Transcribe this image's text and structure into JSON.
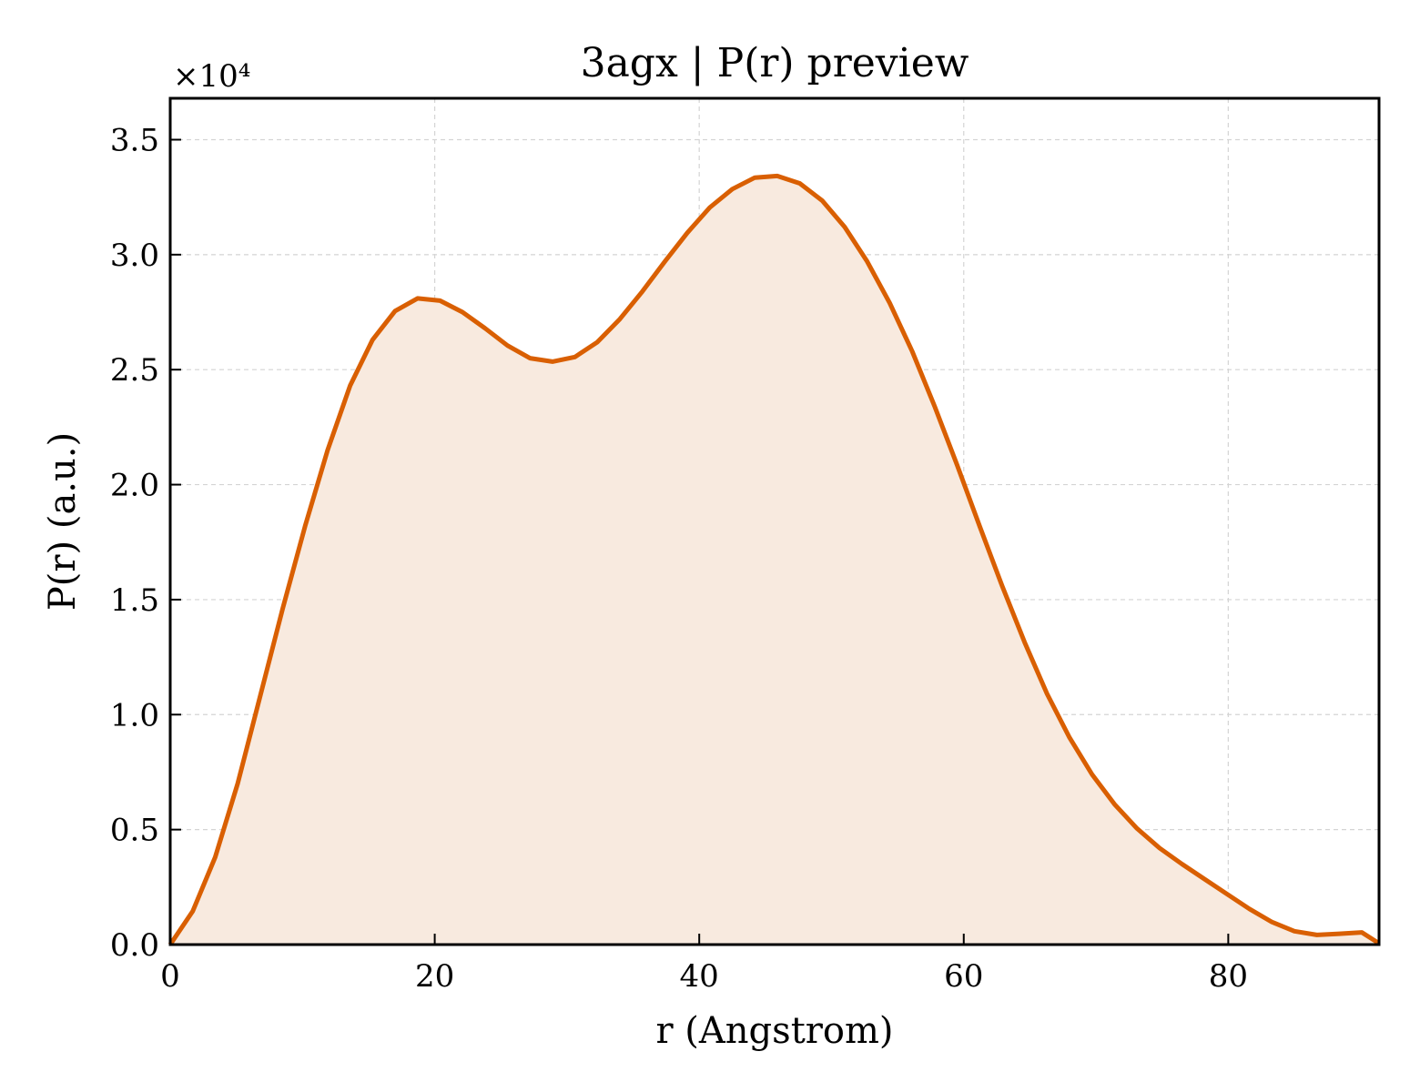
{
  "chart_data": {
    "type": "area",
    "title": "3agx | P(r) preview",
    "xlabel": "r (Angstrom)",
    "ylabel": "P(r) (a.u.)",
    "y_offset_label": "×10⁴",
    "xlim": [
      0,
      91.4
    ],
    "ylim": [
      0,
      36800
    ],
    "x_ticks": [
      0,
      20,
      40,
      60,
      80
    ],
    "x_tick_labels": [
      "0",
      "20",
      "40",
      "60",
      "80"
    ],
    "y_ticks": [
      0,
      5000,
      10000,
      15000,
      20000,
      25000,
      30000,
      35000
    ],
    "y_tick_labels": [
      "0.0",
      "0.5",
      "1.0",
      "1.5",
      "2.0",
      "2.5",
      "3.0",
      "3.5"
    ],
    "grid": true,
    "line_color": "#d95f02",
    "fill_color": "#f8eadf",
    "series": [
      {
        "x": [
          0.0,
          1.7,
          3.4,
          5.1,
          6.8,
          8.5,
          10.2,
          11.9,
          13.6,
          15.3,
          17.0,
          18.7,
          20.4,
          22.1,
          23.8,
          25.5,
          27.2,
          28.9,
          30.6,
          32.3,
          34.0,
          35.7,
          37.4,
          39.1,
          40.8,
          42.5,
          44.2,
          45.9,
          47.6,
          49.3,
          51.0,
          52.7,
          54.4,
          56.1,
          57.8,
          59.5,
          61.2,
          62.9,
          64.6,
          66.3,
          68.0,
          69.7,
          71.4,
          73.1,
          74.8,
          76.5,
          78.2,
          79.9,
          81.6,
          83.3,
          85.0,
          86.7,
          88.4,
          90.1,
          91.4
        ],
        "y": [
          0,
          1450,
          3800,
          7000,
          10800,
          14600,
          18200,
          21500,
          24300,
          26300,
          27550,
          28100,
          28000,
          27500,
          26800,
          26050,
          25500,
          25350,
          25550,
          26200,
          27200,
          28400,
          29700,
          30950,
          32050,
          32850,
          33350,
          33420,
          33100,
          32350,
          31200,
          29700,
          27900,
          25800,
          23400,
          20850,
          18200,
          15600,
          13150,
          10900,
          9000,
          7400,
          6100,
          5050,
          4200,
          3500,
          2850,
          2200,
          1550,
          980,
          580,
          420,
          470,
          530,
          50
        ]
      }
    ]
  }
}
